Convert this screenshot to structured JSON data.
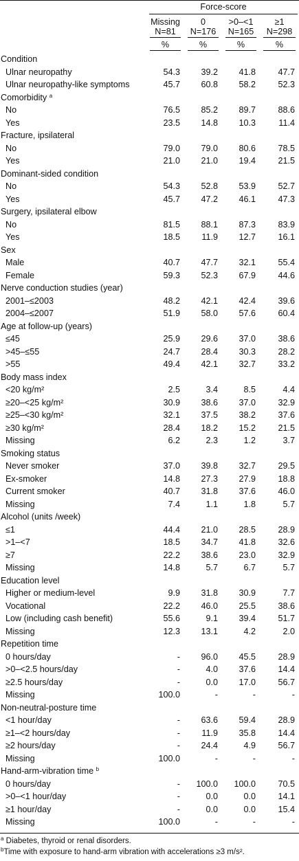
{
  "header": {
    "group_title": "Force-score",
    "columns": [
      {
        "line1": "Missing",
        "line2": "N=81"
      },
      {
        "line1": "0",
        "line2": "N=176"
      },
      {
        "line1": ">0–<1",
        "line2": "N=165"
      },
      {
        "line1": "≥1",
        "line2": "N=298"
      }
    ],
    "unit": "%"
  },
  "sections": [
    {
      "title": "Condition",
      "sup": "",
      "rows": [
        {
          "label": "Ulnar neuropathy",
          "values": [
            "54.3",
            "39.2",
            "41.8",
            "47.7"
          ]
        },
        {
          "label": "Ulnar neuropathy-like symptoms",
          "values": [
            "45.7",
            "60.8",
            "58.2",
            "52.3"
          ]
        }
      ]
    },
    {
      "title": "Comorbidity",
      "sup": "a",
      "rows": [
        {
          "label": "No",
          "values": [
            "76.5",
            "85.2",
            "89.7",
            "88.6"
          ]
        },
        {
          "label": "Yes",
          "values": [
            "23.5",
            "14.8",
            "10.3",
            "11.4"
          ]
        }
      ]
    },
    {
      "title": "Fracture, ipsilateral",
      "sup": "",
      "rows": [
        {
          "label": "No",
          "values": [
            "79.0",
            "79.0",
            "80.6",
            "78.5"
          ]
        },
        {
          "label": "Yes",
          "values": [
            "21.0",
            "21.0",
            "19.4",
            "21.5"
          ]
        }
      ]
    },
    {
      "title": "Dominant-sided condition",
      "sup": "",
      "rows": [
        {
          "label": "No",
          "values": [
            "54.3",
            "52.8",
            "53.9",
            "52.7"
          ]
        },
        {
          "label": "Yes",
          "values": [
            "45.7",
            "47.2",
            "46.1",
            "47.3"
          ]
        }
      ]
    },
    {
      "title": "Surgery, ipsilateral elbow",
      "sup": "",
      "rows": [
        {
          "label": "No",
          "values": [
            "81.5",
            "88.1",
            "87.3",
            "83.9"
          ]
        },
        {
          "label": "Yes",
          "values": [
            "18.5",
            "11.9",
            "12.7",
            "16.1"
          ]
        }
      ]
    },
    {
      "title": "Sex",
      "sup": "",
      "rows": [
        {
          "label": "Male",
          "values": [
            "40.7",
            "47.7",
            "32.1",
            "55.4"
          ]
        },
        {
          "label": "Female",
          "values": [
            "59.3",
            "52.3",
            "67.9",
            "44.6"
          ]
        }
      ]
    },
    {
      "title": "Nerve conduction studies (year)",
      "sup": "",
      "rows": [
        {
          "label": "2001–≤2003",
          "values": [
            "48.2",
            "42.1",
            "42.4",
            "39.6"
          ]
        },
        {
          "label": "2004–≤2007",
          "values": [
            "51.9",
            "58.0",
            "57.6",
            "60.4"
          ]
        }
      ]
    },
    {
      "title": "Age at follow-up (years)",
      "sup": "",
      "rows": [
        {
          "label": "≤45",
          "values": [
            "25.9",
            "29.6",
            "37.0",
            "38.6"
          ]
        },
        {
          "label": ">45–≤55",
          "values": [
            "24.7",
            "28.4",
            "30.3",
            "28.2"
          ]
        },
        {
          "label": ">55",
          "values": [
            "49.4",
            "42.1",
            "32.7",
            "33.2"
          ]
        }
      ]
    },
    {
      "title": "Body mass index",
      "sup": "",
      "rows": [
        {
          "label": "<20 kg/m²",
          "values": [
            "2.5",
            "3.4",
            "8.5",
            "4.4"
          ]
        },
        {
          "label": "≥20–<25 kg/m²",
          "values": [
            "30.9",
            "38.6",
            "37.0",
            "32.9"
          ]
        },
        {
          "label": "≥25–<30 kg/m²",
          "values": [
            "32.1",
            "37.5",
            "38.2",
            "37.6"
          ]
        },
        {
          "label": "≥30 kg/m²",
          "values": [
            "28.4",
            "18.2",
            "15.2",
            "21.5"
          ]
        },
        {
          "label": "Missing",
          "values": [
            "6.2",
            "2.3",
            "1.2",
            "3.7"
          ]
        }
      ]
    },
    {
      "title": "Smoking status",
      "sup": "",
      "rows": [
        {
          "label": "Never smoker",
          "values": [
            "37.0",
            "39.8",
            "32.7",
            "29.5"
          ]
        },
        {
          "label": "Ex-smoker",
          "values": [
            "14.8",
            "27.3",
            "27.9",
            "18.8"
          ]
        },
        {
          "label": "Current smoker",
          "values": [
            "40.7",
            "31.8",
            "37.6",
            "46.0"
          ]
        },
        {
          "label": "Missing",
          "values": [
            "7.4",
            "1.1",
            "1.8",
            "5.7"
          ]
        }
      ]
    },
    {
      "title": "Alcohol (units /week)",
      "sup": "",
      "rows": [
        {
          "label": "≤1",
          "values": [
            "44.4",
            "21.0",
            "28.5",
            "28.9"
          ]
        },
        {
          "label": ">1–<7",
          "values": [
            "18.5",
            "34.7",
            "41.8",
            "32.6"
          ]
        },
        {
          "label": "≥7",
          "values": [
            "22.2",
            "38.6",
            "23.0",
            "32.9"
          ]
        },
        {
          "label": "Missing",
          "values": [
            "14.8",
            "5.7",
            "6.7",
            "5.7"
          ]
        }
      ]
    },
    {
      "title": "Education level",
      "sup": "",
      "rows": [
        {
          "label": "Higher or medium-level",
          "values": [
            "9.9",
            "31.8",
            "30.9",
            "7.7"
          ]
        },
        {
          "label": "Vocational",
          "values": [
            "22.2",
            "46.0",
            "25.5",
            "38.6"
          ]
        },
        {
          "label": "Low (including cash benefit)",
          "values": [
            "55.6",
            "9.1",
            "39.4",
            "51.7"
          ]
        },
        {
          "label": "Missing",
          "values": [
            "12.3",
            "13.1",
            "4.2",
            "2.0"
          ]
        }
      ]
    },
    {
      "title": "Repetition time",
      "sup": "",
      "rows": [
        {
          "label": "0 hours/day",
          "values": [
            "-",
            "96.0",
            "45.5",
            "28.9"
          ]
        },
        {
          "label": ">0–<2.5 hours/day",
          "values": [
            "-",
            "4.0",
            "37.6",
            "14.4"
          ]
        },
        {
          "label": "≥2.5 hours/day",
          "values": [
            "-",
            "0.0",
            "17.0",
            "56.7"
          ]
        },
        {
          "label": "Missing",
          "values": [
            "100.0",
            "-",
            "-",
            "-"
          ]
        }
      ]
    },
    {
      "title": "Non-neutral-posture time",
      "sup": "",
      "rows": [
        {
          "label": "<1 hour/day",
          "values": [
            "-",
            "63.6",
            "59.4",
            "28.9"
          ]
        },
        {
          "label": "≥1–<2 hours/day",
          "values": [
            "-",
            "11.9",
            "35.8",
            "14.4"
          ]
        },
        {
          "label": "≥2 hours/day",
          "values": [
            "-",
            "24.4",
            "4.9",
            "56.7"
          ]
        },
        {
          "label": "Missing",
          "values": [
            "100.0",
            "-",
            "-",
            "-"
          ]
        }
      ]
    },
    {
      "title": "Hand-arm-vibration time",
      "sup": "b",
      "rows": [
        {
          "label": "0 hours/day",
          "values": [
            "-",
            "100.0",
            "100.0",
            "70.5"
          ]
        },
        {
          "label": ">0–<1 hour/day",
          "values": [
            "-",
            "0.0",
            "0.0",
            "14.1"
          ]
        },
        {
          "label": "≥1 hour/day",
          "values": [
            "-",
            "0.0",
            "0.0",
            "15.4"
          ]
        },
        {
          "label": "Missing",
          "values": [
            "100.0",
            "-",
            "-",
            "-"
          ]
        }
      ]
    }
  ],
  "footnotes": [
    {
      "mark": "a",
      "text": "Diabetes, thyroid or renal disorders."
    },
    {
      "mark": "b",
      "text": "Time with exposure to hand-arm vibration with accelerations ≥3 m/s²."
    }
  ]
}
